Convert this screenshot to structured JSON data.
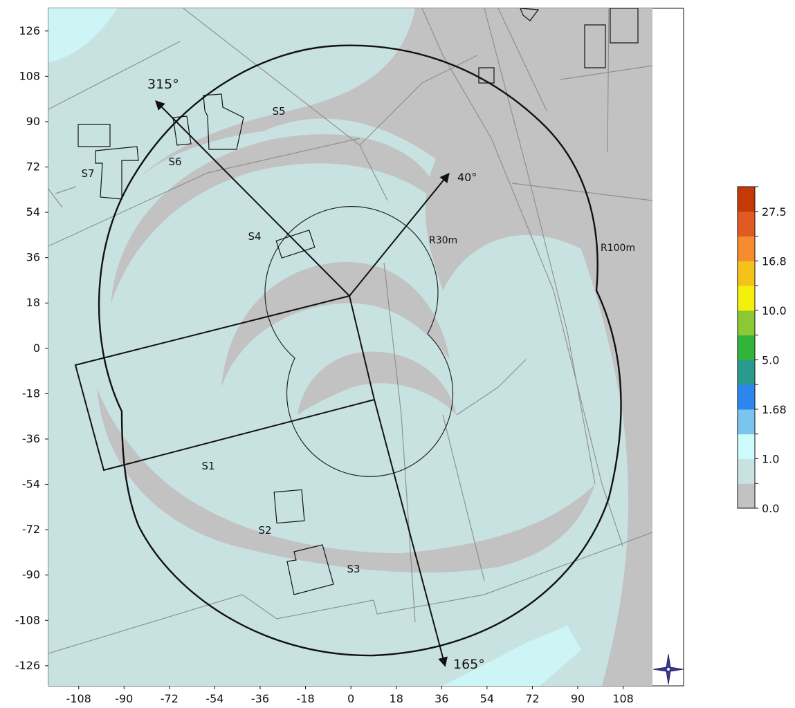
{
  "chart_data": {
    "type": "heatmap",
    "x_ticks": [
      "-108",
      "-90",
      "-72",
      "-54",
      "-36",
      "-18",
      "0",
      "18",
      "36",
      "54",
      "72",
      "90",
      "108"
    ],
    "y_ticks": [
      "126",
      "108",
      "90",
      "72",
      "54",
      "36",
      "18",
      "0",
      "-18",
      "-36",
      "-54",
      "-72",
      "-90",
      "-108",
      "-126"
    ],
    "xlim": [
      -120,
      132
    ],
    "ylim": [
      -134,
      135
    ],
    "grid": false,
    "legend": "colorbar right",
    "colorbar": {
      "tick_labels": [
        "0.0",
        "1.0",
        "1.68",
        "5.0",
        "10.0",
        "16.8",
        "27.5"
      ],
      "colors": [
        "#c2c2c2",
        "#c8e2e2",
        "#ccfbfb",
        "#7cc4f0",
        "#2d86ee",
        "#2a9a8c",
        "#32b33a",
        "#8cc833",
        "#f4ef0c",
        "#f5c21c",
        "#f58c30",
        "#e05b22",
        "#c43a06"
      ]
    },
    "sites": [
      {
        "label": "S1",
        "x": -57,
        "y": -46
      },
      {
        "label": "S2",
        "x": -34,
        "y": -72
      },
      {
        "label": "S3",
        "x": 2,
        "y": -87
      },
      {
        "label": "S4",
        "x": -38,
        "y": 40
      },
      {
        "label": "S5",
        "x": -28,
        "y": 94
      },
      {
        "label": "S6",
        "x": -70,
        "y": 73
      },
      {
        "label": "S7",
        "x": -104,
        "y": 68
      }
    ],
    "bearings": [
      {
        "label": "315°",
        "degrees": 315
      },
      {
        "label": "40°",
        "degrees": 40
      },
      {
        "label": "165°",
        "degrees": 165
      }
    ],
    "radius_labels": [
      "R30m",
      "R100m"
    ]
  }
}
